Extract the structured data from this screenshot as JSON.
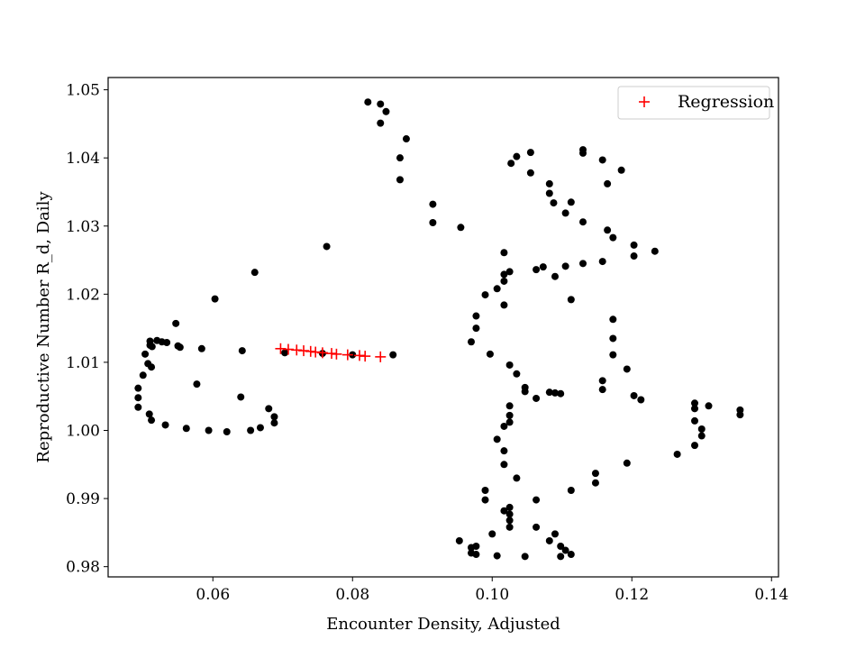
{
  "chart_data": {
    "type": "scatter",
    "title": "",
    "xlabel": "Encounter Density, Adjusted",
    "ylabel": "Reproductive Number R_d, Daily",
    "xlim": [
      0.045,
      0.141
    ],
    "ylim": [
      0.9785,
      1.0518
    ],
    "xticks": [
      0.06,
      0.08,
      0.1,
      0.12,
      0.14
    ],
    "xtick_labels": [
      "0.06",
      "0.08",
      "0.10",
      "0.12",
      "0.14"
    ],
    "yticks": [
      0.98,
      0.99,
      1.0,
      1.01,
      1.02,
      1.03,
      1.04,
      1.05
    ],
    "ytick_labels": [
      "0.98",
      "0.99",
      "1.00",
      "1.01",
      "1.02",
      "1.03",
      "1.04",
      "1.05"
    ],
    "grid": false,
    "legend": {
      "position": "top-right"
    },
    "colors": {
      "observed": "#000000",
      "regression": "#ff0000"
    },
    "series": [
      {
        "marker": "circle",
        "color": "#000000",
        "points": [
          [
            0.0493,
            1.0062
          ],
          [
            0.0493,
            1.0048
          ],
          [
            0.0493,
            1.0034
          ],
          [
            0.05,
            1.0081
          ],
          [
            0.0503,
            1.0112
          ],
          [
            0.0507,
            1.0098
          ],
          [
            0.0509,
            1.0024
          ],
          [
            0.051,
            1.0125
          ],
          [
            0.051,
            1.0131
          ],
          [
            0.0512,
            1.0093
          ],
          [
            0.0512,
            1.0015
          ],
          [
            0.0513,
            1.0123
          ],
          [
            0.052,
            1.0132
          ],
          [
            0.0527,
            1.013
          ],
          [
            0.0534,
            1.0129
          ],
          [
            0.0532,
            1.0008
          ],
          [
            0.0547,
            1.0157
          ],
          [
            0.055,
            1.0124
          ],
          [
            0.0553,
            1.0122
          ],
          [
            0.0562,
            1.0003
          ],
          [
            0.0577,
            1.0068
          ],
          [
            0.0584,
            1.012
          ],
          [
            0.0594,
            1.0
          ],
          [
            0.0603,
            1.0193
          ],
          [
            0.062,
            0.9998
          ],
          [
            0.064,
            1.0049
          ],
          [
            0.0642,
            1.0117
          ],
          [
            0.0654,
            1.0
          ],
          [
            0.066,
            1.0232
          ],
          [
            0.0668,
            1.0004
          ],
          [
            0.068,
            1.0032
          ],
          [
            0.0688,
            1.002
          ],
          [
            0.0688,
            1.0011
          ],
          [
            0.0703,
            1.0114
          ],
          [
            0.0763,
            1.027
          ],
          [
            0.0757,
            1.0113
          ],
          [
            0.08,
            1.0111
          ],
          [
            0.0858,
            1.0111
          ],
          [
            0.0822,
            1.0482
          ],
          [
            0.084,
            1.0479
          ],
          [
            0.084,
            1.0451
          ],
          [
            0.0848,
            1.0468
          ],
          [
            0.0868,
            1.04
          ],
          [
            0.0868,
            1.0368
          ],
          [
            0.0877,
            1.0428
          ],
          [
            0.0915,
            1.0332
          ],
          [
            0.0915,
            1.0305
          ],
          [
            0.0955,
            1.0298
          ],
          [
            0.0953,
            0.9838
          ],
          [
            0.097,
            0.9828
          ],
          [
            0.097,
            0.982
          ],
          [
            0.0977,
            0.983
          ],
          [
            0.0977,
            0.9818
          ],
          [
            0.097,
            1.013
          ],
          [
            0.0977,
            1.0168
          ],
          [
            0.0977,
            1.015
          ],
          [
            0.099,
            1.0199
          ],
          [
            0.099,
            0.9912
          ],
          [
            0.099,
            0.9898
          ],
          [
            0.0997,
            1.0112
          ],
          [
            0.1,
            0.9848
          ],
          [
            0.1007,
            1.0208
          ],
          [
            0.1007,
            0.9987
          ],
          [
            0.1007,
            0.9816
          ],
          [
            0.1017,
            1.0261
          ],
          [
            0.1017,
            1.0229
          ],
          [
            0.1017,
            1.0219
          ],
          [
            0.1017,
            1.0184
          ],
          [
            0.1017,
            1.0006
          ],
          [
            0.1017,
            0.997
          ],
          [
            0.1017,
            0.995
          ],
          [
            0.1017,
            0.9882
          ],
          [
            0.1025,
            1.0233
          ],
          [
            0.1025,
            1.0096
          ],
          [
            0.1025,
            1.0036
          ],
          [
            0.1025,
            1.0022
          ],
          [
            0.1025,
            1.0012
          ],
          [
            0.1025,
            0.9887
          ],
          [
            0.1025,
            0.9877
          ],
          [
            0.1025,
            0.9868
          ],
          [
            0.1025,
            0.9858
          ],
          [
            0.1027,
            1.0392
          ],
          [
            0.1035,
            1.0402
          ],
          [
            0.1035,
            1.0083
          ],
          [
            0.1035,
            0.993
          ],
          [
            0.1047,
            1.0063
          ],
          [
            0.1047,
            1.0057
          ],
          [
            0.1047,
            0.9815
          ],
          [
            0.1055,
            1.0408
          ],
          [
            0.1055,
            1.0378
          ],
          [
            0.1063,
            1.0236
          ],
          [
            0.1063,
            1.0047
          ],
          [
            0.1063,
            0.9898
          ],
          [
            0.1063,
            0.9858
          ],
          [
            0.1073,
            1.024
          ],
          [
            0.1082,
            1.0362
          ],
          [
            0.1082,
            1.0348
          ],
          [
            0.1082,
            1.0056
          ],
          [
            0.1082,
            0.9838
          ],
          [
            0.1088,
            1.0334
          ],
          [
            0.109,
            1.0226
          ],
          [
            0.109,
            1.0055
          ],
          [
            0.109,
            0.9848
          ],
          [
            0.1098,
            1.0054
          ],
          [
            0.1098,
            0.983
          ],
          [
            0.1098,
            0.9815
          ],
          [
            0.1105,
            1.0319
          ],
          [
            0.1105,
            1.0241
          ],
          [
            0.1105,
            0.9824
          ],
          [
            0.1113,
            1.0335
          ],
          [
            0.1113,
            1.0192
          ],
          [
            0.1113,
            0.9912
          ],
          [
            0.1113,
            0.9818
          ],
          [
            0.113,
            1.0412
          ],
          [
            0.113,
            1.0407
          ],
          [
            0.113,
            1.0306
          ],
          [
            0.113,
            1.0245
          ],
          [
            0.1148,
            0.9937
          ],
          [
            0.1148,
            0.9923
          ],
          [
            0.1158,
            1.0397
          ],
          [
            0.1158,
            1.0248
          ],
          [
            0.1158,
            1.0073
          ],
          [
            0.1158,
            1.006
          ],
          [
            0.1165,
            1.0362
          ],
          [
            0.1165,
            1.0294
          ],
          [
            0.1173,
            1.0283
          ],
          [
            0.1173,
            1.0163
          ],
          [
            0.1173,
            1.0135
          ],
          [
            0.1173,
            1.0111
          ],
          [
            0.1185,
            1.0382
          ],
          [
            0.1193,
            1.009
          ],
          [
            0.1193,
            0.9952
          ],
          [
            0.1203,
            1.0272
          ],
          [
            0.1203,
            1.0256
          ],
          [
            0.1203,
            1.0051
          ],
          [
            0.1213,
            1.0045
          ],
          [
            0.1233,
            1.0263
          ],
          [
            0.1265,
            0.9965
          ],
          [
            0.129,
            1.004
          ],
          [
            0.129,
            1.0032
          ],
          [
            0.129,
            1.0014
          ],
          [
            0.129,
            0.9978
          ],
          [
            0.13,
            1.0002
          ],
          [
            0.13,
            0.9992
          ],
          [
            0.131,
            1.0036
          ],
          [
            0.1355,
            1.003
          ],
          [
            0.1355,
            1.0023
          ]
        ]
      },
      {
        "name": "Regression",
        "marker": "plus",
        "color": "#ff0000",
        "points": [
          [
            0.0697,
            1.012
          ],
          [
            0.0708,
            1.0119
          ],
          [
            0.072,
            1.0118
          ],
          [
            0.073,
            1.0117
          ],
          [
            0.074,
            1.0116
          ],
          [
            0.0747,
            1.0115
          ],
          [
            0.0757,
            1.0114
          ],
          [
            0.077,
            1.0113
          ],
          [
            0.0777,
            1.0112
          ],
          [
            0.0793,
            1.0111
          ],
          [
            0.081,
            1.011
          ],
          [
            0.0818,
            1.0109
          ],
          [
            0.084,
            1.0108
          ]
        ]
      }
    ]
  }
}
